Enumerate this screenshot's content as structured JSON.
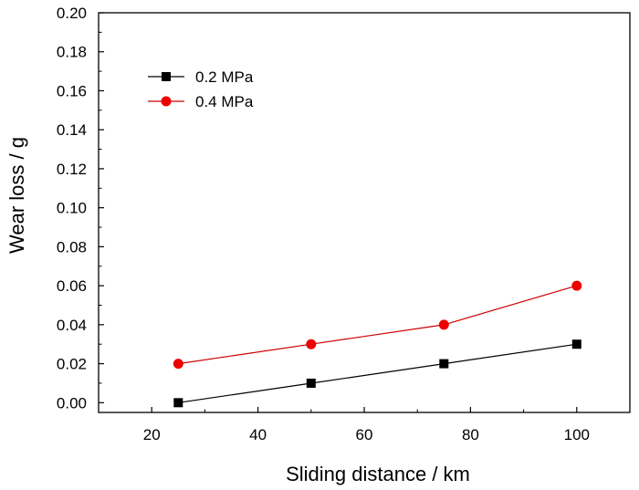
{
  "chart_data": {
    "type": "line",
    "title": "",
    "xlabel": "Sliding distance / km",
    "ylabel": "Wear loss / g",
    "xlim": [
      10,
      110
    ],
    "ylim": [
      -0.005,
      0.2
    ],
    "xticks": [
      20,
      40,
      60,
      80,
      100
    ],
    "yticks": [
      0.0,
      0.02,
      0.04,
      0.06,
      0.08,
      0.1,
      0.12,
      0.14,
      0.16,
      0.18,
      0.2
    ],
    "xtick_labels": [
      "20",
      "40",
      "60",
      "80",
      "100"
    ],
    "ytick_labels": [
      "0.00",
      "0.02",
      "0.04",
      "0.06",
      "0.08",
      "0.10",
      "0.12",
      "0.14",
      "0.16",
      "0.18",
      "0.20"
    ],
    "grid": false,
    "legend_position": "top-left",
    "series": [
      {
        "name": "0.2 MPa",
        "marker": "square",
        "line_color": "#000000",
        "marker_color": "#000000",
        "x": [
          25,
          50,
          75,
          100
        ],
        "values": [
          0.0,
          0.01,
          0.02,
          0.03
        ]
      },
      {
        "name": "0.4 MPa",
        "marker": "circle",
        "line_color": "#cc0000",
        "marker_color": "#ee0000",
        "x": [
          25,
          50,
          75,
          100
        ],
        "values": [
          0.02,
          0.03,
          0.04,
          0.06
        ]
      }
    ]
  }
}
